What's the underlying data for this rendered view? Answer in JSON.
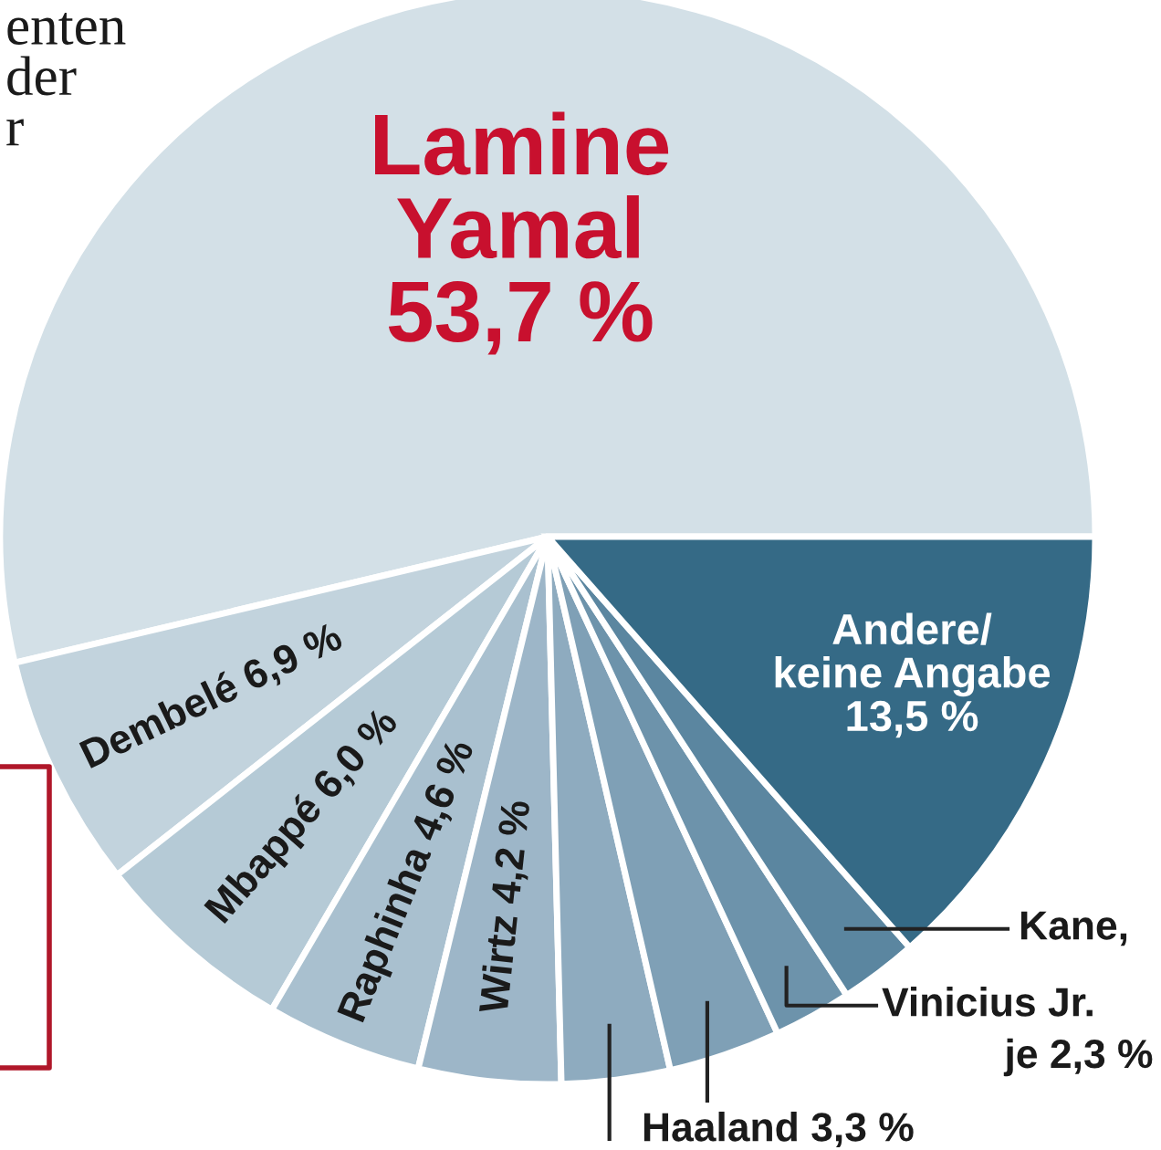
{
  "chart_data": {
    "type": "pie",
    "categories": [
      "Lamine Yamal",
      "Dembelé",
      "Mbappé",
      "Raphinha",
      "Wirtz",
      null,
      "Haaland",
      "Vinicius Jr.",
      "Kane",
      "Andere/ keine Angabe"
    ],
    "values": [
      53.7,
      6.9,
      6.0,
      4.6,
      4.2,
      3.2,
      3.3,
      2.3,
      2.3,
      13.5
    ],
    "value_labels": [
      "53,7 %",
      "6,9 %",
      "6,0 %",
      "4,6 %",
      "4,2 %",
      null,
      "3,3 %",
      "je 2,3 %",
      ",",
      "13,5 %"
    ],
    "colors": [
      "#d3e0e7",
      "#c2d3dd",
      "#b5cad6",
      "#a9c0cf",
      "#9db6c8",
      "#8eabbf",
      "#7fa0b6",
      "#6d93ab",
      "#5b86a0",
      "#356a86"
    ],
    "annotations": [
      "enten\nder\nr"
    ]
  }
}
